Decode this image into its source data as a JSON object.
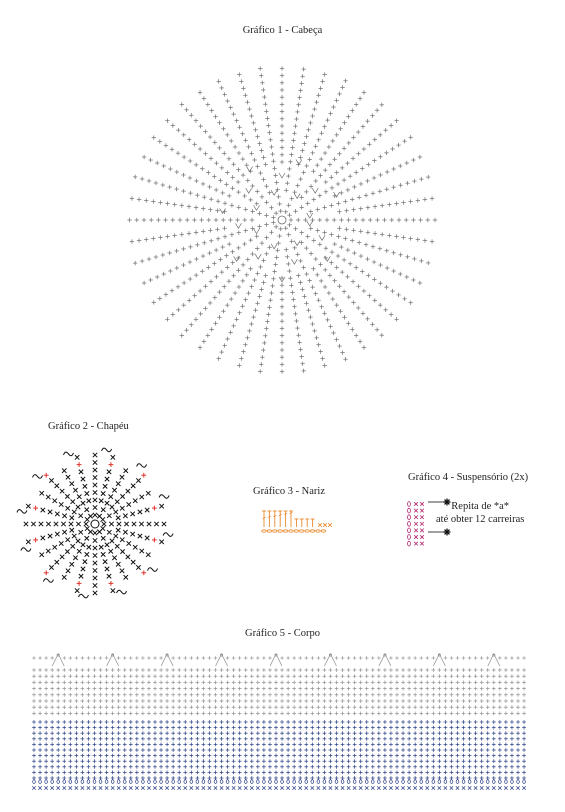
{
  "charts": [
    {
      "id": "cabeca",
      "title": "Gráfico 1 - Cabeça",
      "color": "#6e6e6e"
    },
    {
      "id": "chapeu",
      "title": "Gráfico 2 - Chapéu",
      "color": "#111111",
      "accent": "#e0322b"
    },
    {
      "id": "nariz",
      "title": "Gráfico 3 - Nariz",
      "color": "#e8892b"
    },
    {
      "id": "suspensorio",
      "title": "Gráfico 4 - Suspensório (2x)",
      "color": "#b1226b",
      "note_line1": "Repita de *a*",
      "note_line2": "até obter 12 carreiras"
    },
    {
      "id": "corpo",
      "title": "Gráfico 5 - Corpo",
      "color_top": "#8a8a8a",
      "color_bottom": "#2b3f86"
    }
  ]
}
